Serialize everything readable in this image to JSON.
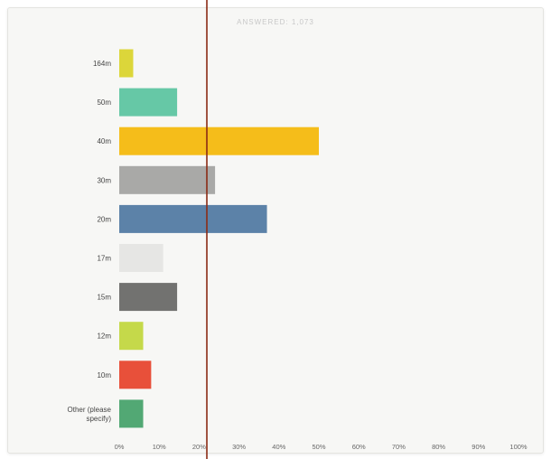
{
  "chart_data": {
    "type": "bar",
    "orientation": "horizontal",
    "title": "ANSWERED: 1,073",
    "categories": [
      "164m",
      "50m",
      "40m",
      "30m",
      "20m",
      "17m",
      "15m",
      "12m",
      "10m",
      "Other (please specify)"
    ],
    "values": [
      3.5,
      14.5,
      50,
      24,
      37,
      11,
      14.5,
      6,
      8,
      6
    ],
    "colors": [
      "#dcd63a",
      "#66c8a6",
      "#f5bd1a",
      "#a9a9a7",
      "#5c82a8",
      "#e6e6e4",
      "#727270",
      "#c5d94a",
      "#e8503a",
      "#52a874"
    ],
    "xlim": [
      0,
      100
    ],
    "x_ticks": [
      "0%",
      "10%",
      "20%",
      "30%",
      "40%",
      "50%",
      "60%",
      "70%",
      "80%",
      "90%",
      "100%"
    ],
    "grid": false,
    "xlabel": "",
    "ylabel": ""
  },
  "style": {
    "background": "#f7f7f5",
    "overlay_line_color": "#8b2a14"
  }
}
